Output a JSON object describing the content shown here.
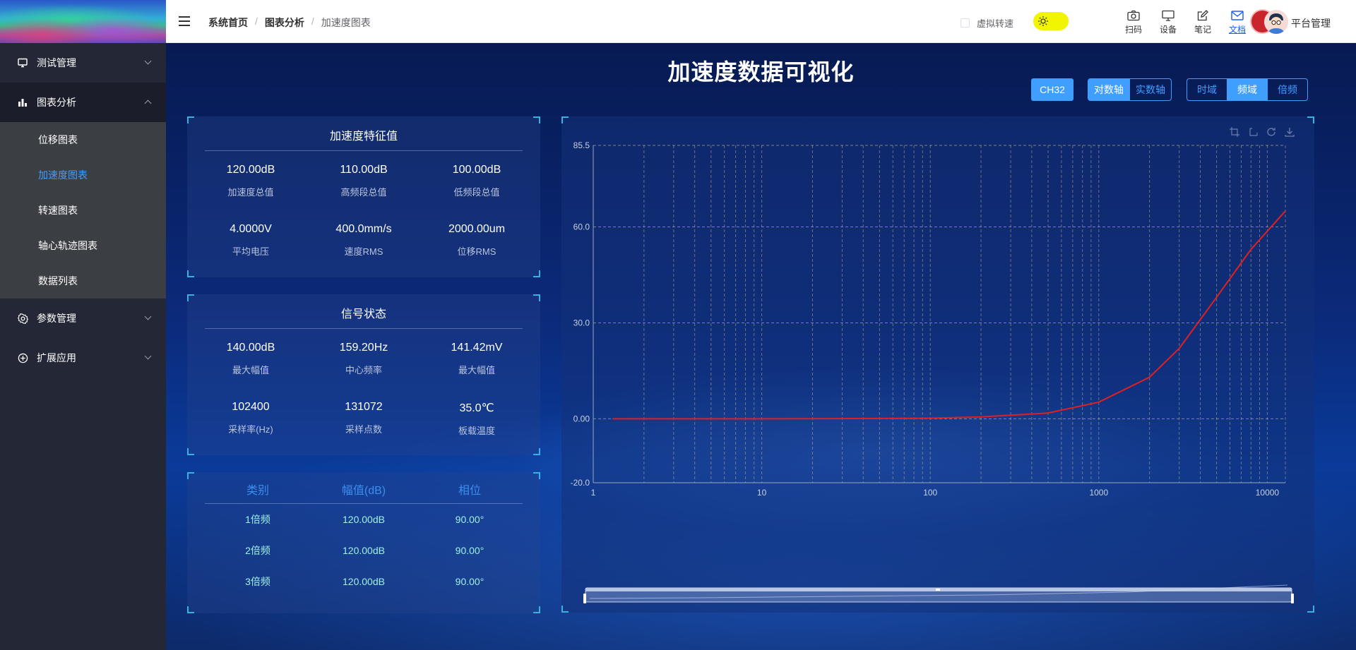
{
  "sidebar": {
    "items": [
      {
        "label": "测试管理",
        "icon": "monitor-icon"
      },
      {
        "label": "图表分析",
        "icon": "bar-chart-icon"
      },
      {
        "label": "参数管理",
        "icon": "gear-icon"
      },
      {
        "label": "扩展应用",
        "icon": "plus-circle-icon"
      }
    ],
    "submenu": [
      "位移图表",
      "加速度图表",
      "转速图表",
      "轴心轨迹图表",
      "数据列表"
    ],
    "active_submenu": "加速度图表"
  },
  "header": {
    "breadcrumb": [
      "系统首页",
      "图表分析",
      "加速度图表"
    ],
    "virtual_speed": "虚拟转速",
    "tools": [
      "扫码",
      "设备",
      "笔记",
      "文档"
    ],
    "user": "平台管理"
  },
  "main": {
    "title": "加速度数据可视化",
    "channel_button": "CH32",
    "axis_toggle": [
      "对数轴",
      "实数轴"
    ],
    "domain_toggle": [
      "时域",
      "频域",
      "倍频"
    ]
  },
  "features": {
    "title": "加速度特征值",
    "stats": [
      {
        "value": "120.00dB",
        "label": "加速度总值"
      },
      {
        "value": "110.00dB",
        "label": "高频段总值"
      },
      {
        "value": "100.00dB",
        "label": "低频段总值"
      },
      {
        "value": "4.0000V",
        "label": "平均电压"
      },
      {
        "value": "400.0mm/s",
        "label": "速度RMS"
      },
      {
        "value": "2000.00um",
        "label": "位移RMS"
      }
    ]
  },
  "signal": {
    "title": "信号状态",
    "stats": [
      {
        "value": "140.00dB",
        "label": "最大幅值"
      },
      {
        "value": "159.20Hz",
        "label": "中心频率"
      },
      {
        "value": "141.42mV",
        "label": "最大幅值"
      },
      {
        "value": "102400",
        "label": "采样率(Hz)"
      },
      {
        "value": "131072",
        "label": "采样点数"
      },
      {
        "value": "35.0℃",
        "label": "板载温度"
      }
    ]
  },
  "harmonics": {
    "headers": [
      "类别",
      "幅值(dB)",
      "相位"
    ],
    "rows": [
      [
        "1倍频",
        "120.00dB",
        "90.00°"
      ],
      [
        "2倍频",
        "120.00dB",
        "90.00°"
      ],
      [
        "3倍频",
        "120.00dB",
        "90.00°"
      ]
    ]
  },
  "chart_data": {
    "type": "line",
    "x_scale": "log",
    "xlim": [
      1,
      12800
    ],
    "ylim": [
      -20.0,
      85.5
    ],
    "x_ticks": [
      "1",
      "10",
      "100",
      "1000",
      "10000"
    ],
    "y_ticks": [
      "85.5",
      "60.0",
      "30.0",
      "0.00",
      "-20.0"
    ],
    "series_color": "#e02020",
    "series": [
      {
        "x": [
          1.3,
          10,
          50,
          100,
          200,
          500,
          1000,
          2000,
          3000,
          5000,
          8000,
          12800
        ],
        "values": [
          0,
          0,
          0.1,
          0.2,
          0.6,
          1.8,
          5.2,
          13,
          22,
          38,
          53,
          65
        ]
      }
    ]
  },
  "colors": {
    "accent": "#409eff",
    "line": "#e02020",
    "corner": "#3ab0e0"
  }
}
